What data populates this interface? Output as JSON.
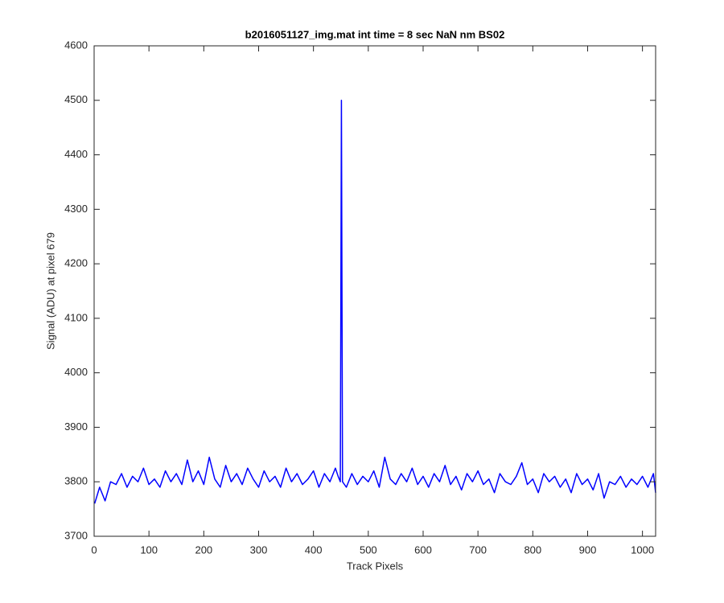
{
  "chart_data": {
    "type": "line",
    "title": "b2016051127_img.mat int time = 8 sec  NaN nm BS02",
    "xlabel": "Track Pixels",
    "ylabel": "Signal (ADU) at pixel 679",
    "xlim": [
      0,
      1024
    ],
    "ylim": [
      3700,
      4600
    ],
    "xticks": [
      0,
      100,
      200,
      300,
      400,
      500,
      600,
      700,
      800,
      900,
      1000
    ],
    "yticks": [
      3700,
      3800,
      3900,
      4000,
      4100,
      4200,
      4300,
      4400,
      4500,
      4600
    ],
    "grid": false,
    "x": [
      1,
      10,
      20,
      30,
      40,
      50,
      60,
      70,
      80,
      90,
      100,
      110,
      120,
      130,
      140,
      150,
      160,
      170,
      180,
      190,
      200,
      210,
      220,
      230,
      240,
      250,
      260,
      270,
      280,
      290,
      300,
      310,
      320,
      330,
      340,
      350,
      360,
      370,
      380,
      390,
      400,
      410,
      420,
      430,
      440,
      445,
      449,
      451,
      453,
      460,
      470,
      480,
      490,
      500,
      510,
      520,
      530,
      540,
      550,
      560,
      570,
      580,
      590,
      600,
      610,
      620,
      630,
      640,
      650,
      660,
      670,
      680,
      690,
      700,
      710,
      720,
      730,
      740,
      750,
      760,
      770,
      780,
      790,
      800,
      810,
      820,
      830,
      840,
      850,
      860,
      870,
      880,
      890,
      900,
      910,
      920,
      930,
      940,
      950,
      960,
      970,
      980,
      990,
      1000,
      1010,
      1020,
      1024
    ],
    "series": [
      {
        "color": "#0000ff",
        "values": [
          3760,
          3790,
          3765,
          3800,
          3795,
          3815,
          3790,
          3810,
          3800,
          3825,
          3795,
          3805,
          3790,
          3820,
          3800,
          3815,
          3795,
          3840,
          3800,
          3820,
          3795,
          3845,
          3805,
          3790,
          3830,
          3800,
          3815,
          3795,
          3825,
          3805,
          3790,
          3820,
          3800,
          3810,
          3790,
          3825,
          3800,
          3815,
          3795,
          3805,
          3820,
          3790,
          3815,
          3800,
          3825,
          3810,
          3800,
          4500,
          3800,
          3790,
          3815,
          3795,
          3810,
          3800,
          3820,
          3790,
          3845,
          3805,
          3795,
          3815,
          3800,
          3825,
          3795,
          3810,
          3790,
          3815,
          3800,
          3830,
          3795,
          3810,
          3785,
          3815,
          3800,
          3820,
          3795,
          3805,
          3780,
          3815,
          3800,
          3795,
          3810,
          3835,
          3795,
          3805,
          3780,
          3815,
          3800,
          3810,
          3790,
          3805,
          3780,
          3815,
          3795,
          3805,
          3785,
          3815,
          3770,
          3800,
          3795,
          3810,
          3790,
          3805,
          3795,
          3810,
          3790,
          3815,
          3780
        ]
      }
    ]
  }
}
